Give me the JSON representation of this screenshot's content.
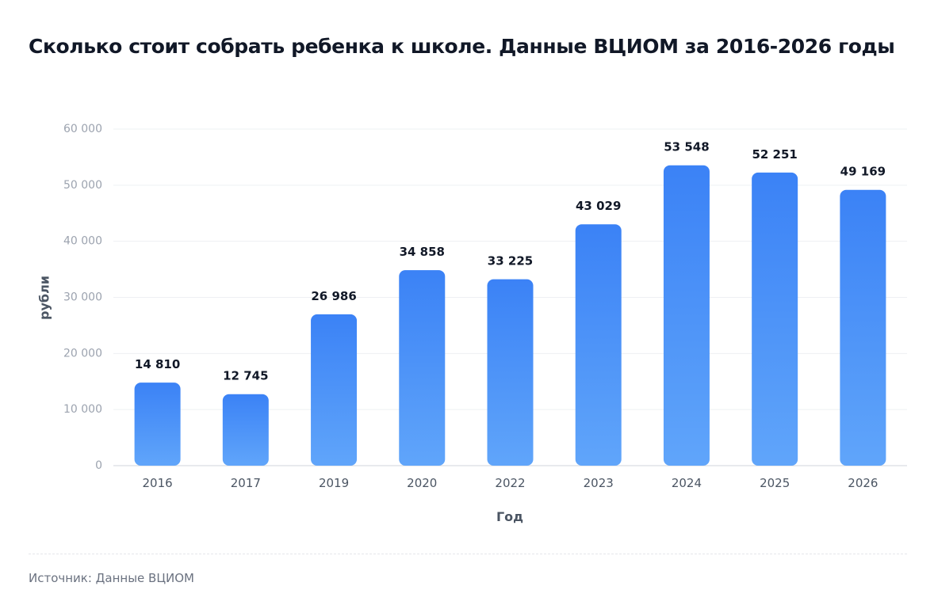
{
  "chart_data": {
    "type": "bar",
    "title": "Сколько стоит собрать ребенка к школе. Данные ВЦИОМ за 2016-2026 годы",
    "xlabel": "Год",
    "ylabel": "рубли",
    "categories": [
      "2016",
      "2017",
      "2019",
      "2020",
      "2022",
      "2023",
      "2024",
      "2025",
      "2026"
    ],
    "values": [
      14810,
      12745,
      26986,
      34858,
      33225,
      43029,
      53548,
      52251,
      49169
    ],
    "value_labels": [
      "14 810",
      "12 745",
      "26 986",
      "34 858",
      "33 225",
      "43 029",
      "53 548",
      "52 251",
      "49 169"
    ],
    "ylim": [
      0,
      60000
    ],
    "yticks": [
      0,
      10000,
      20000,
      30000,
      40000,
      50000,
      60000
    ],
    "ytick_labels": [
      "0",
      "10 000",
      "20 000",
      "30 000",
      "40 000",
      "50 000",
      "60 000"
    ],
    "grid": true,
    "legend": "none",
    "colors": {
      "bar_top": "#3b82f6",
      "bar_bottom": "#60a5fa",
      "grid": "#eef0f3",
      "tick_label": "#9ca3af",
      "axis_label": "#4b5563",
      "value_label": "#111827"
    }
  },
  "footer": {
    "source": "Источник: Данные ВЦИОМ"
  }
}
